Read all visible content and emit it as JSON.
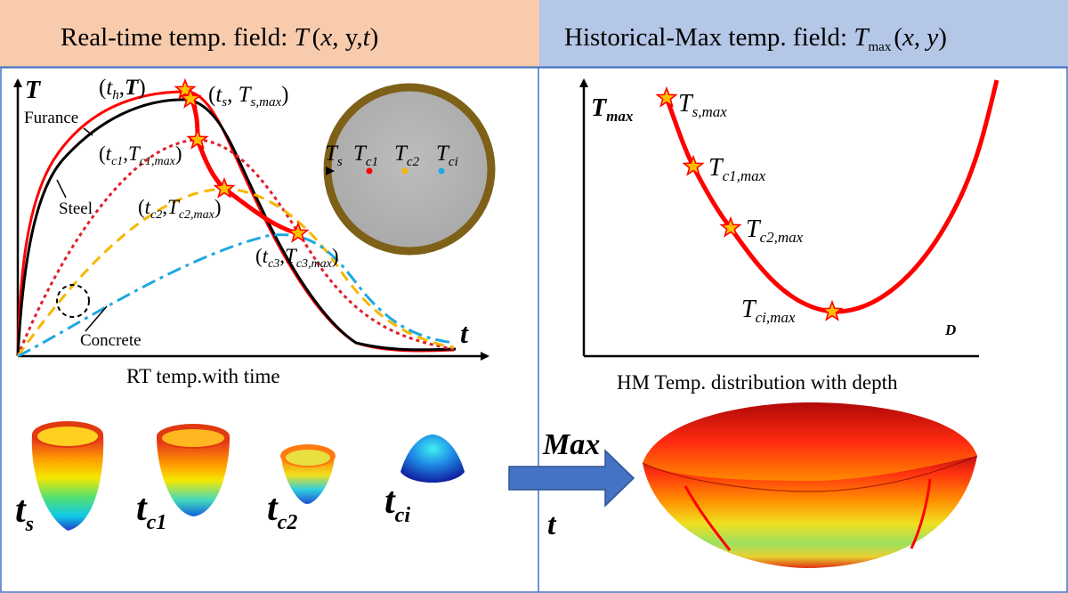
{
  "header": {
    "left": {
      "prefix": "Real-time temp. field: ",
      "sym": "T",
      "args_open": "(",
      "x": "x",
      "sep1": ", ",
      "y": "y",
      "sep2": ",",
      "t": "t",
      "args_close": ")",
      "bg_color": "#f8cbad"
    },
    "right": {
      "prefix": "Historical-Max temp. field: ",
      "sym": "T",
      "sub": "max",
      "args_open": "(",
      "x": "x",
      "sep1": ", ",
      "y": "y",
      "args_close": ")",
      "bg_color": "#b4c7e7"
    }
  },
  "left_chart": {
    "ylabel": "T",
    "xlabel": "t",
    "caption": "RT temp.with time",
    "annotations": {
      "furnace": "Furance",
      "steel": "Steel",
      "concrete": "Concrete",
      "th_point": {
        "t": "t",
        "tsub": "h",
        "T": "T"
      },
      "ts_point": {
        "t": "t",
        "tsub": "s",
        "T": "T",
        "Tsub": "s,max"
      },
      "tc1_point": {
        "t": "t",
        "tsub": "c1",
        "T": "T",
        "Tsub": "c1,max"
      },
      "tc2_point": {
        "t": "t",
        "tsub": "c2",
        "T": "T",
        "Tsub": "c2,max"
      },
      "tc3_point": {
        "t": "t",
        "tsub": "c3",
        "T": "T",
        "Tsub": "c3,max"
      }
    },
    "series_colors": {
      "furnace": "#ff0000",
      "steel": "#000000",
      "concrete_c1": "#e0202a",
      "concrete_c2": "#f5b800",
      "concrete_ci": "#1ea8e0",
      "max_path": "#ff0000"
    }
  },
  "cross_section": {
    "labels": {
      "ts": {
        "T": "T",
        "sub": "s"
      },
      "tc1": {
        "T": "T",
        "sub": "c1"
      },
      "tc2": {
        "T": "T",
        "sub": "c2"
      },
      "tci": {
        "T": "T",
        "sub": "ci"
      }
    },
    "ring_color": "#7f6018",
    "fill_color": "#b3b3b3",
    "dot_colors": [
      "#ff0000",
      "#f5b800",
      "#1ea8e0"
    ]
  },
  "right_chart": {
    "ylabel": {
      "T": "T",
      "sub": "max"
    },
    "xlabel": "D",
    "caption": "HM Temp. distribution with depth",
    "points": [
      {
        "T": "T",
        "sub": "s,max"
      },
      {
        "T": "T",
        "sub": "c1,max"
      },
      {
        "T": "T",
        "sub": "c2,max"
      },
      {
        "T": "T",
        "sub": "ci,max"
      }
    ],
    "curve_color": "#ff0000"
  },
  "shapes_row": {
    "labels": [
      {
        "t": "t",
        "sub": "s"
      },
      {
        "t": "t",
        "sub": "c1"
      },
      {
        "t": "t",
        "sub": "c2"
      },
      {
        "t": "t",
        "sub": "ci"
      }
    ]
  },
  "arrow": {
    "top": "Max",
    "bottom": "t",
    "color": "#4472c4"
  }
}
